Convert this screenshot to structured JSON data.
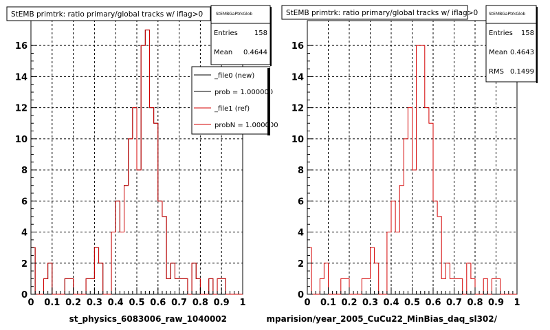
{
  "chart_data": [
    {
      "type": "histogram",
      "title": "StEMB primtrk: ratio primary/global tracks w/ iflag>0",
      "xlabel": "st_physics_6083006_raw_1040002",
      "xlim": [
        0,
        1
      ],
      "ylim": [
        0,
        17.6
      ],
      "x_ticks": [
        "0",
        "0.1",
        "0.2",
        "0.3",
        "0.4",
        "0.5",
        "0.6",
        "0.7",
        "0.8",
        "0.9",
        "1"
      ],
      "y_ticks": [
        "0",
        "2",
        "4",
        "6",
        "8",
        "10",
        "12",
        "14",
        "16"
      ],
      "grid": true,
      "bin_width": 0.02,
      "series": [
        {
          "name": "_file0 (new)",
          "color": "#000000",
          "values": [
            3,
            0,
            0,
            1,
            2,
            0,
            0,
            0,
            1,
            1,
            0,
            0,
            0,
            1,
            1,
            3,
            2,
            0,
            0,
            4,
            6,
            4,
            7,
            10,
            12,
            8,
            16,
            17,
            12,
            11,
            6,
            5,
            1,
            2,
            1,
            1,
            1,
            0,
            2,
            1,
            0,
            0,
            1,
            0,
            1,
            1,
            0,
            0,
            0,
            0
          ]
        },
        {
          "name": "_file1 (ref)",
          "color": "#d40000",
          "values": [
            3,
            0,
            0,
            1,
            2,
            0,
            0,
            0,
            1,
            1,
            0,
            0,
            0,
            1,
            1,
            3,
            2,
            0,
            0,
            4,
            6,
            4,
            7,
            10,
            12,
            8,
            16,
            17,
            12,
            11,
            6,
            5,
            1,
            2,
            1,
            1,
            1,
            0,
            2,
            1,
            0,
            0,
            1,
            0,
            1,
            1,
            0,
            0,
            0,
            0
          ]
        }
      ],
      "stats": {
        "header": "StEMBGaPtrkGlob",
        "entries_label": "Entries",
        "entries": "158",
        "mean_label": "Mean",
        "mean": "0.4644"
      },
      "legend": {
        "placement": "top-right",
        "entries": [
          "_file0 (new)",
          "prob = 1.000000",
          "_file1 (ref)",
          "probN = 1.000000"
        ]
      }
    },
    {
      "type": "histogram",
      "title": "StEMB primtrk: ratio primary/global tracks w/ iflag>0",
      "xlabel": "mparision/year_2005_CuCu22_MinBias_daq_sl302/",
      "xlim": [
        0,
        1
      ],
      "ylim": [
        0,
        17.6
      ],
      "x_ticks": [
        "0",
        "0.1",
        "0.2",
        "0.3",
        "0.4",
        "0.5",
        "0.6",
        "0.7",
        "0.8",
        "0.9",
        "1"
      ],
      "y_ticks": [
        "0",
        "2",
        "4",
        "6",
        "8",
        "10",
        "12",
        "14",
        "16"
      ],
      "grid": true,
      "bin_width": 0.02,
      "series": [
        {
          "name": "",
          "color": "#d40000",
          "values": [
            3,
            0,
            0,
            1,
            2,
            0,
            0,
            0,
            1,
            1,
            0,
            0,
            0,
            1,
            1,
            3,
            2,
            0,
            0,
            4,
            6,
            4,
            7,
            10,
            12,
            8,
            16,
            16,
            12,
            11,
            6,
            5,
            1,
            2,
            1,
            1,
            1,
            0,
            2,
            1,
            0,
            0,
            1,
            0,
            1,
            1,
            0,
            0,
            0,
            0
          ]
        }
      ],
      "stats": {
        "header": "StEMBGaPtrkGlob",
        "entries_label": "Entries",
        "entries": "158",
        "mean_label": "Mean",
        "mean": "0.4643",
        "rms_label": "RMS",
        "rms": "0.1499"
      }
    }
  ]
}
